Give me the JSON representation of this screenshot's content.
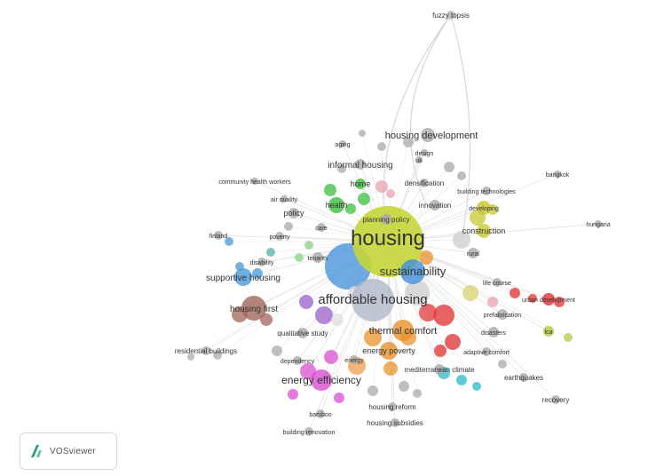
{
  "terms": [
    {
      "id": "housing",
      "label": "housing",
      "color": "#c5d63a"
    },
    {
      "id": "affordable",
      "label": "affordable housing",
      "color": "#b0b8c8"
    },
    {
      "id": "sustainability",
      "label": "sustainability",
      "color": "#3f8fd8"
    },
    {
      "id": "housing_dev",
      "label": "housing development",
      "color": "#aaaaaa"
    },
    {
      "id": "informal",
      "label": "informal housing",
      "color": "#aaaaaa"
    },
    {
      "id": "fuzzy",
      "label": "fuzzy topsis",
      "color": "#b5b5b5"
    },
    {
      "id": "energy_eff",
      "label": "energy efficiency",
      "color": "#d84fd0"
    },
    {
      "id": "thermal",
      "label": "thermal comfort",
      "color": "#e8922a"
    },
    {
      "id": "energy_pov",
      "label": "energy poverty",
      "color": "#e8922a"
    },
    {
      "id": "supportive",
      "label": "supportive housing",
      "color": "#4a9ad8"
    },
    {
      "id": "housing_first",
      "label": "housing first",
      "color": "#a0665a"
    },
    {
      "id": "health",
      "label": "health",
      "color": "#3cbf3c"
    },
    {
      "id": "home",
      "label": "home",
      "color": "#3cbf3c"
    },
    {
      "id": "policy",
      "label": "policy",
      "color": "#aaaaaa"
    },
    {
      "id": "community",
      "label": "community health workers",
      "color": "#aaaaaa"
    },
    {
      "id": "construction",
      "label": "construction",
      "color": "#c8c830"
    },
    {
      "id": "earthquakes",
      "label": "earthquakes",
      "color": "#aaaaaa"
    },
    {
      "id": "recovery",
      "label": "recovery",
      "color": "#aaaaaa"
    },
    {
      "id": "residential",
      "label": "residential buildings",
      "color": "#aaaaaa"
    },
    {
      "id": "qualitative",
      "label": "qualitative study",
      "color": "#aaaaaa"
    },
    {
      "id": "densification",
      "label": "densification",
      "color": "#aaaaaa"
    },
    {
      "id": "innovation",
      "label": "innovation",
      "color": "#aaaaaa"
    },
    {
      "id": "planning",
      "label": "planning policy",
      "color": "#aaaaaa"
    },
    {
      "id": "building_tech",
      "label": "building technologies",
      "color": "#aaaaaa"
    },
    {
      "id": "developing",
      "label": "developing",
      "color": "#c8c830"
    },
    {
      "id": "bangkok",
      "label": "bangkok",
      "color": "#aaaaaa"
    },
    {
      "id": "hungaria",
      "label": "hungaria",
      "color": "#aaaaaa"
    },
    {
      "id": "finland",
      "label": "finland",
      "color": "#aaaaaa"
    },
    {
      "id": "poverty",
      "label": "poverty",
      "color": "#aaaaaa"
    },
    {
      "id": "tenants",
      "label": "tenants",
      "color": "#aaaaaa"
    },
    {
      "id": "rural",
      "label": "rural",
      "color": "#aaaaaa"
    },
    {
      "id": "disasters",
      "label": "disasters",
      "color": "#aaaaaa"
    },
    {
      "id": "prefab",
      "label": "prefabrication",
      "color": "#aaaaaa"
    },
    {
      "id": "life_course",
      "label": "life course",
      "color": "#aaaaaa"
    },
    {
      "id": "urban_dev",
      "label": "urban development",
      "color": "#dd3030"
    },
    {
      "id": "mediterranean",
      "label": "mediterranean climate",
      "color": "#aaaaaa"
    },
    {
      "id": "adaptive",
      "label": "adaptive comfort",
      "color": "#aaaaaa"
    },
    {
      "id": "lca",
      "label": "lca",
      "color": "#b8c840"
    },
    {
      "id": "housing_reform",
      "label": "housing reform",
      "color": "#aaaaaa"
    },
    {
      "id": "housing_subsidies",
      "label": "housing subsidies",
      "color": "#aaaaaa"
    },
    {
      "id": "bamboo",
      "label": "bamboo",
      "color": "#aaaaaa"
    },
    {
      "id": "building_renovation",
      "label": "building renovation",
      "color": "#aaaaaa"
    },
    {
      "id": "disability",
      "label": "disability",
      "color": "#aaaaaa"
    },
    {
      "id": "air_quality",
      "label": "air quality",
      "color": "#aaaaaa"
    },
    {
      "id": "energy",
      "label": "energy",
      "color": "#aaaaaa"
    },
    {
      "id": "care",
      "label": "care",
      "color": "#aaaaaa"
    },
    {
      "id": "aging",
      "label": "aging",
      "color": "#aaaaaa"
    },
    {
      "id": "design",
      "label": "design",
      "color": "#aaaaaa"
    },
    {
      "id": "uk",
      "label": "uk",
      "color": "#aaaaaa"
    },
    {
      "id": "dependency",
      "label": "dependency",
      "color": "#aaaaaa"
    }
  ],
  "logo": {
    "text": "VOSviewer"
  }
}
